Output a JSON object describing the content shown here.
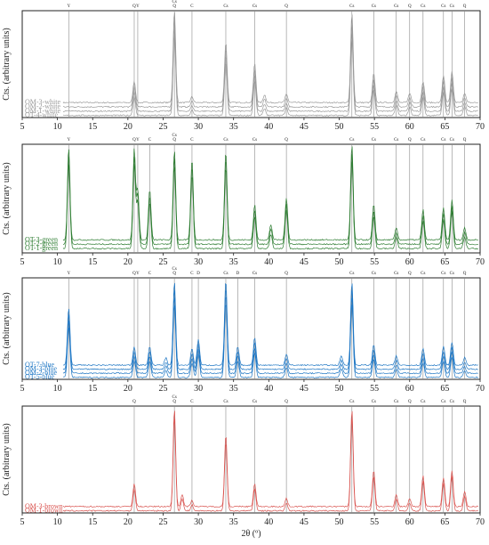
{
  "figure": {
    "xlabel": "2θ (º)"
  },
  "chart_data": [
    {
      "type": "line",
      "panel": "white",
      "ylabel": "Cts. (arbitrary units)",
      "xlim": [
        5,
        70
      ],
      "ylim": [
        0,
        1
      ],
      "xticks": [
        5,
        10,
        15,
        20,
        25,
        30,
        35,
        40,
        45,
        50,
        55,
        60,
        65,
        70
      ],
      "color": "#9a9a9a",
      "phase_lines": [
        {
          "x": 11.6,
          "label": "Y"
        },
        {
          "x": 20.9,
          "label": "Q"
        },
        {
          "x": 21.4,
          "label": "Y"
        },
        {
          "x": 26.6,
          "label": "Cs Q"
        },
        {
          "x": 29.1,
          "label": "C"
        },
        {
          "x": 33.9,
          "label": "Cs"
        },
        {
          "x": 38.0,
          "label": "Cs"
        },
        {
          "x": 42.5,
          "label": "Q"
        },
        {
          "x": 51.8,
          "label": "Cs"
        },
        {
          "x": 54.9,
          "label": "Cs"
        },
        {
          "x": 58.1,
          "label": "Cs"
        },
        {
          "x": 60.0,
          "label": "Q"
        },
        {
          "x": 61.9,
          "label": "Cs"
        },
        {
          "x": 64.8,
          "label": "Cs"
        },
        {
          "x": 66.0,
          "label": "Cs"
        },
        {
          "x": 67.8,
          "label": "Q"
        }
      ],
      "peaks": [
        {
          "x": 20.9,
          "h": 0.22
        },
        {
          "x": 26.6,
          "h": 0.95
        },
        {
          "x": 29.1,
          "h": 0.06
        },
        {
          "x": 33.9,
          "h": 0.62
        },
        {
          "x": 38.0,
          "h": 0.4
        },
        {
          "x": 39.4,
          "h": 0.08
        },
        {
          "x": 42.5,
          "h": 0.09
        },
        {
          "x": 51.8,
          "h": 0.92
        },
        {
          "x": 54.9,
          "h": 0.3
        },
        {
          "x": 58.1,
          "h": 0.12
        },
        {
          "x": 60.0,
          "h": 0.1
        },
        {
          "x": 61.9,
          "h": 0.22
        },
        {
          "x": 64.8,
          "h": 0.28
        },
        {
          "x": 66.0,
          "h": 0.32
        },
        {
          "x": 67.8,
          "h": 0.1
        }
      ],
      "series": [
        {
          "name": "OM-3-white",
          "offset": 0.14
        },
        {
          "name": "OM-2-white",
          "offset": 0.1
        },
        {
          "name": "OM-1-white",
          "offset": 0.06
        },
        {
          "name": "OT-4-white",
          "offset": 0.02
        }
      ]
    },
    {
      "type": "line",
      "panel": "green",
      "ylabel": "Cts. (arbitrary units)",
      "xlim": [
        5,
        70
      ],
      "ylim": [
        0,
        1
      ],
      "xticks": [
        5,
        10,
        15,
        20,
        25,
        30,
        35,
        40,
        45,
        50,
        55,
        60,
        65,
        70
      ],
      "color": "#2e7d32",
      "phase_lines": [
        {
          "x": 11.6,
          "label": "Y"
        },
        {
          "x": 20.9,
          "label": "Q"
        },
        {
          "x": 21.4,
          "label": "Y"
        },
        {
          "x": 23.1,
          "label": "C"
        },
        {
          "x": 26.6,
          "label": "Cs Q"
        },
        {
          "x": 29.1,
          "label": "C"
        },
        {
          "x": 33.9,
          "label": "Cs"
        },
        {
          "x": 38.0,
          "label": "Cs"
        },
        {
          "x": 42.5,
          "label": "Q"
        },
        {
          "x": 51.8,
          "label": "Cs"
        },
        {
          "x": 54.9,
          "label": "Cs"
        },
        {
          "x": 58.1,
          "label": "Cs"
        },
        {
          "x": 60.0,
          "label": "Q"
        },
        {
          "x": 61.9,
          "label": "Cs"
        },
        {
          "x": 64.8,
          "label": "Cs"
        },
        {
          "x": 66.0,
          "label": "Cs"
        },
        {
          "x": 67.8,
          "label": "Q"
        }
      ],
      "peaks": [
        {
          "x": 11.6,
          "h": 0.92
        },
        {
          "x": 20.9,
          "h": 0.9
        },
        {
          "x": 21.4,
          "h": 0.5
        },
        {
          "x": 23.1,
          "h": 0.5
        },
        {
          "x": 26.6,
          "h": 0.9
        },
        {
          "x": 29.1,
          "h": 0.8
        },
        {
          "x": 33.9,
          "h": 0.88
        },
        {
          "x": 38.0,
          "h": 0.35
        },
        {
          "x": 40.3,
          "h": 0.15
        },
        {
          "x": 42.5,
          "h": 0.42
        },
        {
          "x": 51.8,
          "h": 0.95
        },
        {
          "x": 54.9,
          "h": 0.35
        },
        {
          "x": 58.1,
          "h": 0.12
        },
        {
          "x": 61.9,
          "h": 0.3
        },
        {
          "x": 64.8,
          "h": 0.32
        },
        {
          "x": 66.0,
          "h": 0.4
        },
        {
          "x": 67.8,
          "h": 0.12
        }
      ],
      "series": [
        {
          "name": "OT-3-green",
          "offset": 0.12
        },
        {
          "name": "OT-2-green",
          "offset": 0.08
        },
        {
          "name": "OT-1-green",
          "offset": 0.04
        }
      ]
    },
    {
      "type": "line",
      "panel": "blue",
      "ylabel": "Cts. (arbitrary units)",
      "xlim": [
        5,
        70
      ],
      "ylim": [
        0,
        1
      ],
      "xticks": [
        5,
        10,
        15,
        20,
        25,
        30,
        35,
        40,
        45,
        50,
        55,
        60,
        65,
        70
      ],
      "color": "#1f77c4",
      "phase_lines": [
        {
          "x": 11.6,
          "label": "Y"
        },
        {
          "x": 20.9,
          "label": "Q"
        },
        {
          "x": 21.4,
          "label": "Y"
        },
        {
          "x": 23.1,
          "label": "C"
        },
        {
          "x": 26.6,
          "label": "Cs Q"
        },
        {
          "x": 29.1,
          "label": "C"
        },
        {
          "x": 30.0,
          "label": "D"
        },
        {
          "x": 33.9,
          "label": "Cs"
        },
        {
          "x": 35.6,
          "label": "D"
        },
        {
          "x": 38.0,
          "label": "Cs"
        },
        {
          "x": 42.5,
          "label": "Q"
        },
        {
          "x": 51.8,
          "label": "Cs"
        },
        {
          "x": 54.9,
          "label": "Cs"
        },
        {
          "x": 58.1,
          "label": "Cs"
        },
        {
          "x": 60.0,
          "label": "Q"
        },
        {
          "x": 61.9,
          "label": "Cs"
        },
        {
          "x": 64.8,
          "label": "Cs"
        },
        {
          "x": 66.0,
          "label": "Cs"
        },
        {
          "x": 67.8,
          "label": "Q"
        }
      ],
      "peaks": [
        {
          "x": 11.6,
          "h": 0.62
        },
        {
          "x": 20.9,
          "h": 0.2
        },
        {
          "x": 23.1,
          "h": 0.2
        },
        {
          "x": 25.4,
          "h": 0.08
        },
        {
          "x": 26.6,
          "h": 0.9
        },
        {
          "x": 29.1,
          "h": 0.18
        },
        {
          "x": 30.0,
          "h": 0.28
        },
        {
          "x": 33.9,
          "h": 0.92
        },
        {
          "x": 35.6,
          "h": 0.2
        },
        {
          "x": 38.0,
          "h": 0.3
        },
        {
          "x": 42.5,
          "h": 0.12
        },
        {
          "x": 50.3,
          "h": 0.1
        },
        {
          "x": 51.8,
          "h": 0.9
        },
        {
          "x": 54.9,
          "h": 0.22
        },
        {
          "x": 58.1,
          "h": 0.1
        },
        {
          "x": 61.9,
          "h": 0.18
        },
        {
          "x": 64.8,
          "h": 0.2
        },
        {
          "x": 66.0,
          "h": 0.25
        },
        {
          "x": 67.8,
          "h": 0.08
        }
      ],
      "series": [
        {
          "name": "OT-7-blue",
          "offset": 0.14
        },
        {
          "name": "OM-3-blue",
          "offset": 0.1
        },
        {
          "name": "OM-2-blue",
          "offset": 0.06
        },
        {
          "name": "OT-5-blue",
          "offset": 0.02
        }
      ]
    },
    {
      "type": "line",
      "panel": "brown",
      "ylabel": "Cts. (arbitrary units)",
      "xlim": [
        5,
        70
      ],
      "ylim": [
        0,
        1
      ],
      "xticks": [
        5,
        10,
        15,
        20,
        25,
        30,
        35,
        40,
        45,
        50,
        55,
        60,
        65,
        70
      ],
      "color": "#d9534f",
      "phase_lines": [
        {
          "x": 20.9,
          "label": "Q"
        },
        {
          "x": 26.6,
          "label": "Cs Q"
        },
        {
          "x": 29.1,
          "label": "C"
        },
        {
          "x": 33.9,
          "label": "Cs"
        },
        {
          "x": 38.0,
          "label": "Cs"
        },
        {
          "x": 42.5,
          "label": "Q"
        },
        {
          "x": 51.8,
          "label": "Cs"
        },
        {
          "x": 54.9,
          "label": "Cs"
        },
        {
          "x": 58.1,
          "label": "Cs"
        },
        {
          "x": 60.0,
          "label": "Q"
        },
        {
          "x": 61.9,
          "label": "Cs"
        },
        {
          "x": 64.8,
          "label": "Cs"
        },
        {
          "x": 66.0,
          "label": "Cs"
        },
        {
          "x": 67.8,
          "label": "Q"
        }
      ],
      "peaks": [
        {
          "x": 20.9,
          "h": 0.22
        },
        {
          "x": 26.6,
          "h": 0.95
        },
        {
          "x": 27.7,
          "h": 0.12
        },
        {
          "x": 29.1,
          "h": 0.06
        },
        {
          "x": 33.9,
          "h": 0.7
        },
        {
          "x": 38.0,
          "h": 0.22
        },
        {
          "x": 42.5,
          "h": 0.08
        },
        {
          "x": 51.8,
          "h": 0.95
        },
        {
          "x": 54.9,
          "h": 0.35
        },
        {
          "x": 58.1,
          "h": 0.12
        },
        {
          "x": 60.0,
          "h": 0.08
        },
        {
          "x": 61.9,
          "h": 0.3
        },
        {
          "x": 64.8,
          "h": 0.28
        },
        {
          "x": 66.0,
          "h": 0.35
        },
        {
          "x": 67.8,
          "h": 0.15
        }
      ],
      "series": [
        {
          "name": "OM-3-brown",
          "offset": 0.06
        },
        {
          "name": "OM-1-brown",
          "offset": 0.02
        }
      ]
    }
  ]
}
